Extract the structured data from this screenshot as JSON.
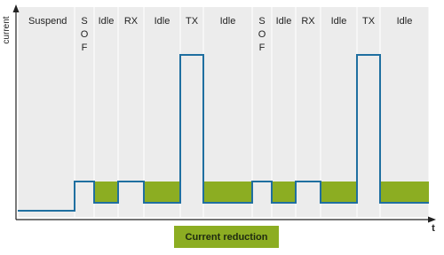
{
  "axes": {
    "y_label": "current",
    "x_label": "t"
  },
  "phases": [
    {
      "label": "Suspend"
    },
    {
      "label": "SOF",
      "orientation": "vertical"
    },
    {
      "label": "Idle"
    },
    {
      "label": "RX"
    },
    {
      "label": "Idle"
    },
    {
      "label": "TX"
    },
    {
      "label": "Idle"
    },
    {
      "label": "SOF",
      "orientation": "vertical"
    },
    {
      "label": "Idle"
    },
    {
      "label": "RX"
    },
    {
      "label": "Idle"
    },
    {
      "label": "TX"
    },
    {
      "label": "Idle"
    }
  ],
  "legend": {
    "label": "Current reduction"
  }
}
